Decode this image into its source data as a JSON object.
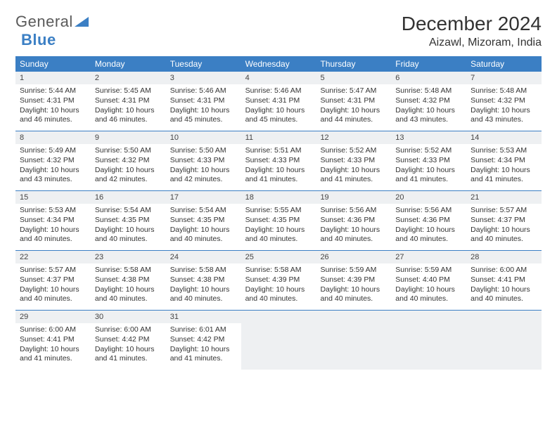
{
  "brand": {
    "general": "General",
    "blue": "Blue"
  },
  "title": "December 2024",
  "location": "Aizawl, Mizoram, India",
  "colors": {
    "header_bg": "#3b7fc4",
    "header_text": "#ffffff",
    "rule": "#3b7fc4",
    "daynum_bg": "#eef0f2",
    "text": "#333333",
    "logo_gray": "#5a5a5a",
    "logo_blue": "#3b7fc4"
  },
  "typography": {
    "title_pt": 21,
    "location_pt": 12,
    "dow_pt": 9,
    "body_pt": 8
  },
  "dow": [
    "Sunday",
    "Monday",
    "Tuesday",
    "Wednesday",
    "Thursday",
    "Friday",
    "Saturday"
  ],
  "weeks": [
    [
      {
        "n": "1",
        "sr": "Sunrise: 5:44 AM",
        "ss": "Sunset: 4:31 PM",
        "dl1": "Daylight: 10 hours",
        "dl2": "and 46 minutes."
      },
      {
        "n": "2",
        "sr": "Sunrise: 5:45 AM",
        "ss": "Sunset: 4:31 PM",
        "dl1": "Daylight: 10 hours",
        "dl2": "and 46 minutes."
      },
      {
        "n": "3",
        "sr": "Sunrise: 5:46 AM",
        "ss": "Sunset: 4:31 PM",
        "dl1": "Daylight: 10 hours",
        "dl2": "and 45 minutes."
      },
      {
        "n": "4",
        "sr": "Sunrise: 5:46 AM",
        "ss": "Sunset: 4:31 PM",
        "dl1": "Daylight: 10 hours",
        "dl2": "and 45 minutes."
      },
      {
        "n": "5",
        "sr": "Sunrise: 5:47 AM",
        "ss": "Sunset: 4:31 PM",
        "dl1": "Daylight: 10 hours",
        "dl2": "and 44 minutes."
      },
      {
        "n": "6",
        "sr": "Sunrise: 5:48 AM",
        "ss": "Sunset: 4:32 PM",
        "dl1": "Daylight: 10 hours",
        "dl2": "and 43 minutes."
      },
      {
        "n": "7",
        "sr": "Sunrise: 5:48 AM",
        "ss": "Sunset: 4:32 PM",
        "dl1": "Daylight: 10 hours",
        "dl2": "and 43 minutes."
      }
    ],
    [
      {
        "n": "8",
        "sr": "Sunrise: 5:49 AM",
        "ss": "Sunset: 4:32 PM",
        "dl1": "Daylight: 10 hours",
        "dl2": "and 43 minutes."
      },
      {
        "n": "9",
        "sr": "Sunrise: 5:50 AM",
        "ss": "Sunset: 4:32 PM",
        "dl1": "Daylight: 10 hours",
        "dl2": "and 42 minutes."
      },
      {
        "n": "10",
        "sr": "Sunrise: 5:50 AM",
        "ss": "Sunset: 4:33 PM",
        "dl1": "Daylight: 10 hours",
        "dl2": "and 42 minutes."
      },
      {
        "n": "11",
        "sr": "Sunrise: 5:51 AM",
        "ss": "Sunset: 4:33 PM",
        "dl1": "Daylight: 10 hours",
        "dl2": "and 41 minutes."
      },
      {
        "n": "12",
        "sr": "Sunrise: 5:52 AM",
        "ss": "Sunset: 4:33 PM",
        "dl1": "Daylight: 10 hours",
        "dl2": "and 41 minutes."
      },
      {
        "n": "13",
        "sr": "Sunrise: 5:52 AM",
        "ss": "Sunset: 4:33 PM",
        "dl1": "Daylight: 10 hours",
        "dl2": "and 41 minutes."
      },
      {
        "n": "14",
        "sr": "Sunrise: 5:53 AM",
        "ss": "Sunset: 4:34 PM",
        "dl1": "Daylight: 10 hours",
        "dl2": "and 41 minutes."
      }
    ],
    [
      {
        "n": "15",
        "sr": "Sunrise: 5:53 AM",
        "ss": "Sunset: 4:34 PM",
        "dl1": "Daylight: 10 hours",
        "dl2": "and 40 minutes."
      },
      {
        "n": "16",
        "sr": "Sunrise: 5:54 AM",
        "ss": "Sunset: 4:35 PM",
        "dl1": "Daylight: 10 hours",
        "dl2": "and 40 minutes."
      },
      {
        "n": "17",
        "sr": "Sunrise: 5:54 AM",
        "ss": "Sunset: 4:35 PM",
        "dl1": "Daylight: 10 hours",
        "dl2": "and 40 minutes."
      },
      {
        "n": "18",
        "sr": "Sunrise: 5:55 AM",
        "ss": "Sunset: 4:35 PM",
        "dl1": "Daylight: 10 hours",
        "dl2": "and 40 minutes."
      },
      {
        "n": "19",
        "sr": "Sunrise: 5:56 AM",
        "ss": "Sunset: 4:36 PM",
        "dl1": "Daylight: 10 hours",
        "dl2": "and 40 minutes."
      },
      {
        "n": "20",
        "sr": "Sunrise: 5:56 AM",
        "ss": "Sunset: 4:36 PM",
        "dl1": "Daylight: 10 hours",
        "dl2": "and 40 minutes."
      },
      {
        "n": "21",
        "sr": "Sunrise: 5:57 AM",
        "ss": "Sunset: 4:37 PM",
        "dl1": "Daylight: 10 hours",
        "dl2": "and 40 minutes."
      }
    ],
    [
      {
        "n": "22",
        "sr": "Sunrise: 5:57 AM",
        "ss": "Sunset: 4:37 PM",
        "dl1": "Daylight: 10 hours",
        "dl2": "and 40 minutes."
      },
      {
        "n": "23",
        "sr": "Sunrise: 5:58 AM",
        "ss": "Sunset: 4:38 PM",
        "dl1": "Daylight: 10 hours",
        "dl2": "and 40 minutes."
      },
      {
        "n": "24",
        "sr": "Sunrise: 5:58 AM",
        "ss": "Sunset: 4:38 PM",
        "dl1": "Daylight: 10 hours",
        "dl2": "and 40 minutes."
      },
      {
        "n": "25",
        "sr": "Sunrise: 5:58 AM",
        "ss": "Sunset: 4:39 PM",
        "dl1": "Daylight: 10 hours",
        "dl2": "and 40 minutes."
      },
      {
        "n": "26",
        "sr": "Sunrise: 5:59 AM",
        "ss": "Sunset: 4:39 PM",
        "dl1": "Daylight: 10 hours",
        "dl2": "and 40 minutes."
      },
      {
        "n": "27",
        "sr": "Sunrise: 5:59 AM",
        "ss": "Sunset: 4:40 PM",
        "dl1": "Daylight: 10 hours",
        "dl2": "and 40 minutes."
      },
      {
        "n": "28",
        "sr": "Sunrise: 6:00 AM",
        "ss": "Sunset: 4:41 PM",
        "dl1": "Daylight: 10 hours",
        "dl2": "and 40 minutes."
      }
    ],
    [
      {
        "n": "29",
        "sr": "Sunrise: 6:00 AM",
        "ss": "Sunset: 4:41 PM",
        "dl1": "Daylight: 10 hours",
        "dl2": "and 41 minutes."
      },
      {
        "n": "30",
        "sr": "Sunrise: 6:00 AM",
        "ss": "Sunset: 4:42 PM",
        "dl1": "Daylight: 10 hours",
        "dl2": "and 41 minutes."
      },
      {
        "n": "31",
        "sr": "Sunrise: 6:01 AM",
        "ss": "Sunset: 4:42 PM",
        "dl1": "Daylight: 10 hours",
        "dl2": "and 41 minutes."
      },
      {
        "empty": true
      },
      {
        "empty": true
      },
      {
        "empty": true
      },
      {
        "empty": true
      }
    ]
  ]
}
